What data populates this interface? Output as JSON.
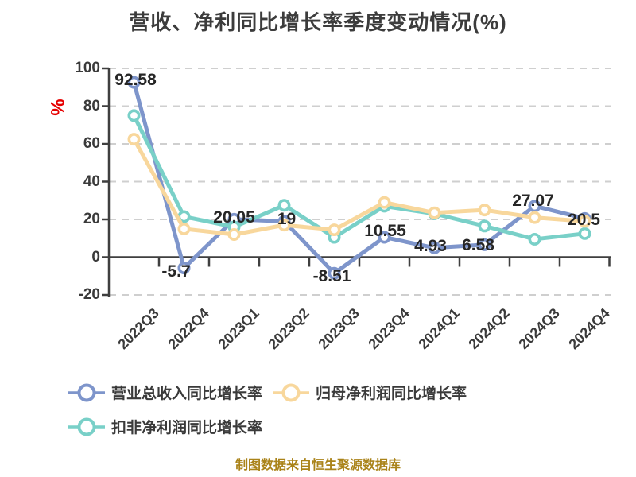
{
  "title": "营收、净利同比增长率季度变动情况(%)",
  "y_axis": {
    "unit": "%"
  },
  "footer": {
    "note": "制图数据来自恒生聚源数据库"
  },
  "colors": {
    "revenue_line": "#7e95cb",
    "net_profit_line": "#f8d79c",
    "non_gaap_line": "#79d0c8",
    "axis": "#3f3f3f",
    "grid": "#cfcfcf",
    "tick_label": "#3a3a3a",
    "data_label": "#262626",
    "title": "#3c3c3c",
    "unit": "#e60000",
    "note": "#aa8319",
    "marker_fill": "#ffffff"
  },
  "chart_data": {
    "type": "line",
    "title": "营收、净利同比增长率季度变动情况(%)",
    "categories": [
      "2022Q3",
      "2022Q4",
      "2023Q1",
      "2023Q2",
      "2023Q3",
      "2023Q4",
      "2024Q1",
      "2024Q2",
      "2024Q3",
      "2024Q4"
    ],
    "series": [
      {
        "name": "营业总收入同比增长率",
        "color": "#7e95cb",
        "values": [
          92.58,
          -5.7,
          20.05,
          19,
          -8.51,
          10.55,
          4.93,
          6.58,
          27.07,
          20.5
        ],
        "point_labels": [
          "92.58",
          "-5.7",
          "20.05",
          "19",
          "-8.51",
          "10.55",
          "4.93",
          "6.58",
          "27.07",
          "20.5"
        ]
      },
      {
        "name": "归母净利润同比增长率",
        "color": "#f8d79c",
        "values": [
          62.5,
          15,
          12,
          17,
          14.5,
          29,
          23.5,
          25,
          21,
          19
        ]
      },
      {
        "name": "扣非净利润同比增长率",
        "color": "#79d0c8",
        "values": [
          75,
          21.5,
          16,
          27.5,
          10.5,
          27,
          23,
          16.5,
          9.5,
          12.5
        ]
      }
    ],
    "xlabel": "",
    "ylabel": "%",
    "ylim": [
      -20,
      100
    ],
    "yticks": [
      100,
      80,
      60,
      40,
      20,
      0,
      -20
    ],
    "grid": true,
    "gridline_style": "dashed",
    "legend_position": "bottom"
  }
}
